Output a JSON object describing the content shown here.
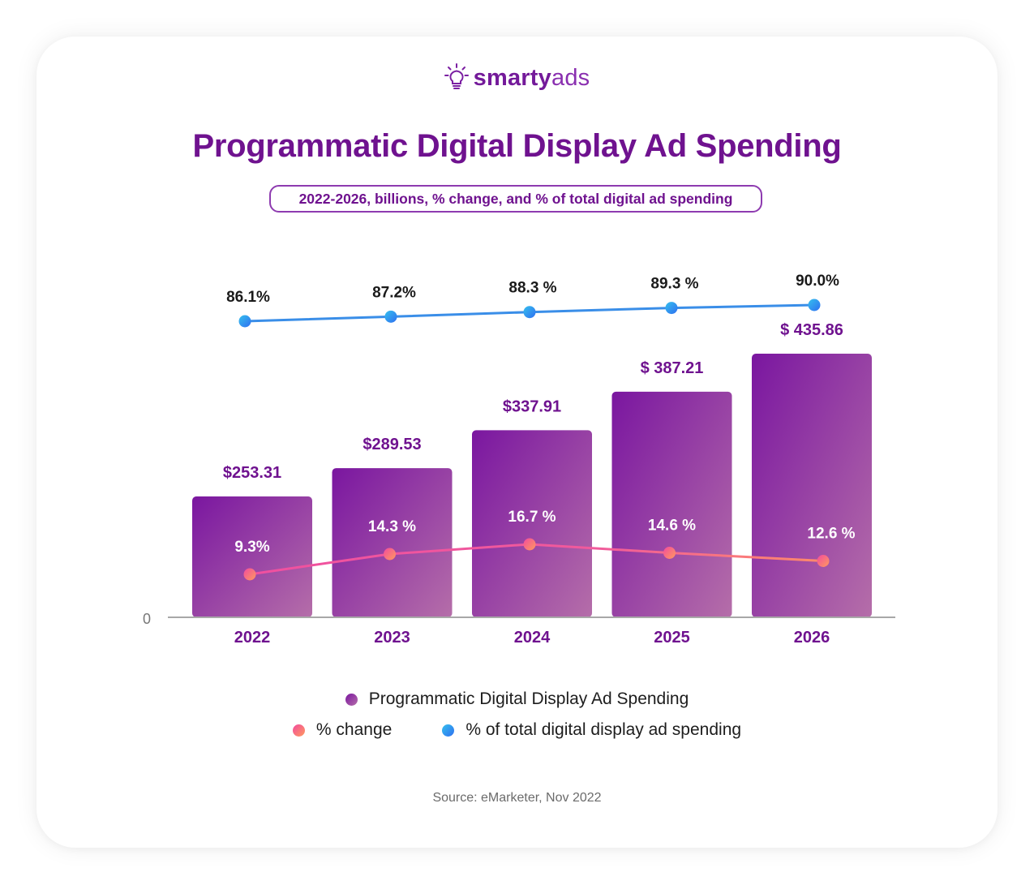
{
  "brand": {
    "name_bold": "smarty",
    "name_regular": "ads",
    "icon": "lightbulb-icon"
  },
  "title": "Programmatic Digital Display Ad Spending",
  "subtitle": "2022-2026, billions, % change, and % of total digital ad spending",
  "source": "Source: eMarketer, Nov 2022",
  "colors": {
    "bar_start": "#7a16a0",
    "bar_end": "#b26aa8",
    "title": "#6f128f",
    "pct_change_line": "#f05aa0",
    "pct_change_dot_start": "#f24a9f",
    "pct_change_dot_end": "#ff9a5e",
    "share_line": "#3a8ee8",
    "share_dot_start": "#2f7ff0",
    "share_dot_end": "#35c0ee"
  },
  "chart_data": {
    "type": "bar",
    "title": "Programmatic Digital Display Ad Spending",
    "subtitle": "2022-2026, billions, % change, and % of total digital ad spending",
    "categories": [
      "2022",
      "2023",
      "2024",
      "2025",
      "2026"
    ],
    "y_zero_label": "0",
    "series": [
      {
        "name": "Programmatic Digital Display Ad Spending",
        "type": "bar",
        "unit": "billions USD",
        "values": [
          253.31,
          289.53,
          337.91,
          387.21,
          435.86
        ],
        "labels": [
          "$253.31",
          "$289.53",
          "$337.91",
          "$ 387.21",
          "$ 435.86"
        ]
      },
      {
        "name": "% change",
        "type": "line",
        "unit": "%",
        "values": [
          9.3,
          14.3,
          16.7,
          14.6,
          12.6
        ],
        "labels": [
          "9.3%",
          "14.3 %",
          "16.7 %",
          "14.6 %",
          "12.6 %"
        ]
      },
      {
        "name": "% of total digital display ad spending",
        "type": "line",
        "unit": "%",
        "values": [
          86.1,
          87.2,
          88.3,
          89.3,
          90.0
        ],
        "labels": [
          "86.1%",
          "87.2%",
          "88.3 %",
          "89.3 %",
          "90.0%"
        ]
      }
    ],
    "legend": {
      "position": "bottom",
      "entries": [
        "Programmatic Digital Display Ad Spending",
        "% change",
        "% of total digital display ad spending"
      ]
    },
    "grid": false
  }
}
